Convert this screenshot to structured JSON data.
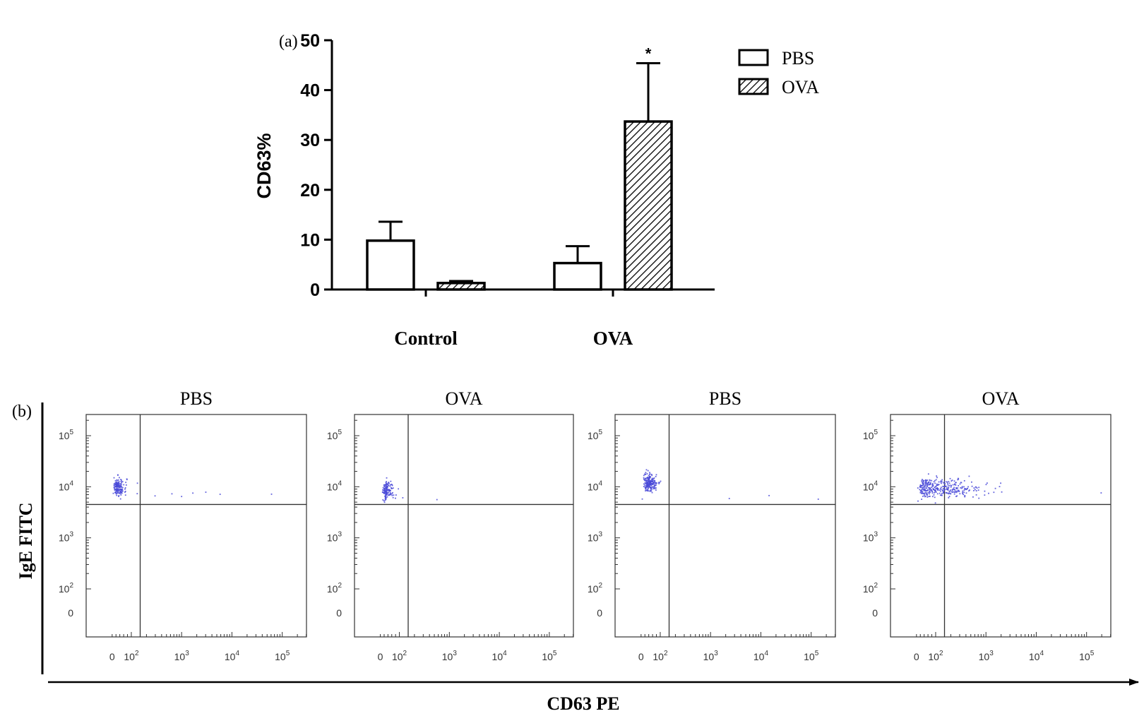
{
  "chart_data": [
    {
      "type": "bar",
      "panel_label": "(a)",
      "categories": [
        "Control",
        "OVA"
      ],
      "series": [
        {
          "name": "PBS",
          "values": [
            9.8,
            5.3
          ],
          "errors": [
            3.8,
            3.4
          ]
        },
        {
          "name": "OVA",
          "values": [
            1.3,
            33.7
          ],
          "errors": [
            0.4,
            11.7
          ]
        }
      ],
      "ylabel": "CD63%",
      "xlabel": "",
      "ylim": [
        0,
        50
      ],
      "yticks": [
        0,
        10,
        20,
        30,
        40,
        50
      ],
      "annotations": [
        {
          "text": "*",
          "category": "OVA",
          "series": "OVA"
        }
      ],
      "legend": {
        "placement": "top-right",
        "entries": [
          "PBS",
          "OVA"
        ]
      }
    },
    {
      "type": "scatter",
      "panel_label": "(b)",
      "ylabel": "IgE FITC",
      "xlabel": "CD63 PE",
      "x_ticks": [
        "0",
        "10",
        "10",
        "10",
        "10"
      ],
      "x_tick_exponents": [
        "",
        "2",
        "3",
        "4",
        "5"
      ],
      "y_ticks": [
        "10",
        "10",
        "10",
        "10",
        "0"
      ],
      "y_tick_exponents": [
        "5",
        "4",
        "3",
        "2",
        ""
      ],
      "quadrant_gates": {
        "x": 150,
        "y": 4500
      },
      "panels": [
        {
          "title": "PBS",
          "clusters": [
            {
              "cx": 30,
              "cy": 10000,
              "sx": 0.2,
              "sy": 0.09,
              "n": 150
            },
            {
              "cx": 1500,
              "cy": 7000,
              "sx": 1.6,
              "sy": 0.05,
              "n": 10
            }
          ]
        },
        {
          "title": "OVA",
          "clusters": [
            {
              "cx": 35,
              "cy": 8500,
              "sx": 0.17,
              "sy": 0.09,
              "n": 130
            },
            {
              "cx": 2000,
              "cy": 5500,
              "sx": 1.8,
              "sy": 0.05,
              "n": 4
            }
          ]
        },
        {
          "title": "PBS",
          "clusters": [
            {
              "cx": 45,
              "cy": 12000,
              "sx": 0.19,
              "sy": 0.09,
              "n": 200
            },
            {
              "cx": 2000,
              "cy": 6000,
              "sx": 1.8,
              "sy": 0.05,
              "n": 4
            }
          ]
        },
        {
          "title": "OVA",
          "clusters": [
            {
              "cx": 120,
              "cy": 9500,
              "sx": 0.42,
              "sy": 0.09,
              "n": 320
            },
            {
              "cx": 8000,
              "cy": 6000,
              "sx": 1.3,
              "sy": 0.1,
              "n": 5
            }
          ]
        }
      ],
      "point_color": "#4a4ad8"
    }
  ]
}
